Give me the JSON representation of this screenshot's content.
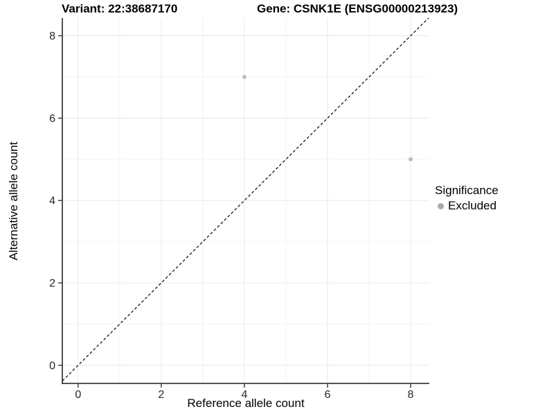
{
  "chart_data": {
    "type": "scatter",
    "titles": {
      "variant": "Variant: 22:38687170",
      "gene": "Gene: CSNK1E (ENSG00000213923)"
    },
    "xlabel": "Reference allele count",
    "ylabel": "Alternative allele count",
    "xlim": [
      -0.38,
      8.45
    ],
    "ylim": [
      -0.44,
      8.43
    ],
    "xticks": [
      0,
      2,
      4,
      6,
      8
    ],
    "yticks": [
      0,
      2,
      4,
      6,
      8
    ],
    "minor_xticks": [
      1,
      3,
      5,
      7
    ],
    "minor_yticks": [
      1,
      3,
      5,
      7
    ],
    "grid": "major-and-minor",
    "legend": {
      "position": "right",
      "title": "Significance",
      "entries": [
        {
          "label": "Excluded",
          "color": "#aaaaaa"
        }
      ]
    },
    "series": [
      {
        "name": "Excluded",
        "color": "#bdbdbd",
        "points": [
          {
            "x": 4,
            "y": 7
          },
          {
            "x": 8,
            "y": 5
          }
        ]
      }
    ],
    "identity_line": {
      "type": "y=x",
      "style": "dashed",
      "color": "#000000"
    }
  },
  "colors": {
    "background": "#ffffff",
    "grid_major": "#e8e8e8",
    "grid_minor": "#f3f3f3",
    "axis_line": "#3c3c3c",
    "tick_label": "#262626",
    "title_text": "#000000",
    "point": "#bdbdbd"
  }
}
